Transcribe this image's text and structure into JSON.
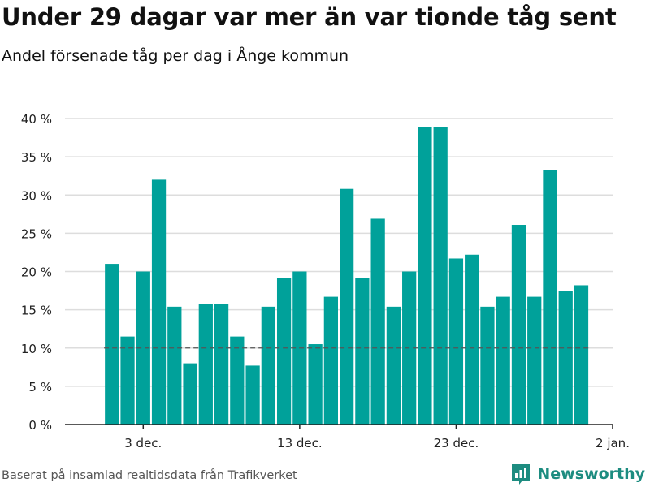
{
  "header": {
    "title": "Under 29 dagar var mer än var tionde tåg sent",
    "subtitle": "Andel försenade tåg per dag i Ånge kommun"
  },
  "footer": {
    "source": "Baserat på insamlad realtidsdata från Trafikverket",
    "brand": "Newsworthy",
    "brand_icon": "newsworthy-logo-icon"
  },
  "colors": {
    "bar": "#00a19a",
    "grid": "#dddddd",
    "reference_line": "#555555",
    "axis": "#222222",
    "text": "#222222",
    "brand": "#1d8c80"
  },
  "chart_data": {
    "type": "bar",
    "title": "Under 29 dagar var mer än var tionde tåg sent",
    "subtitle": "Andel försenade tåg per dag i Ånge kommun",
    "x": [
      "2021-12-01",
      "2021-12-02",
      "2021-12-03",
      "2021-12-04",
      "2021-12-05",
      "2021-12-06",
      "2021-12-07",
      "2021-12-08",
      "2021-12-09",
      "2021-12-10",
      "2021-12-11",
      "2021-12-12",
      "2021-12-13",
      "2021-12-14",
      "2021-12-15",
      "2021-12-16",
      "2021-12-17",
      "2021-12-18",
      "2021-12-19",
      "2021-12-20",
      "2021-12-21",
      "2021-12-22",
      "2021-12-23",
      "2021-12-24",
      "2021-12-25",
      "2021-12-26",
      "2021-12-27",
      "2021-12-28",
      "2021-12-29",
      "2021-12-30",
      "2021-12-31"
    ],
    "values": [
      21.0,
      11.5,
      20.0,
      32.0,
      15.4,
      8.0,
      15.8,
      15.8,
      11.5,
      7.7,
      15.4,
      19.2,
      20.0,
      10.5,
      16.7,
      30.8,
      19.2,
      26.9,
      15.4,
      20.0,
      38.9,
      38.9,
      21.7,
      22.2,
      15.4,
      16.7,
      26.1,
      16.7,
      33.3,
      17.4,
      18.2
    ],
    "ylim": [
      0,
      40
    ],
    "yticks": [
      0,
      5,
      10,
      15,
      20,
      25,
      30,
      35,
      40
    ],
    "ytick_labels": [
      "0 %",
      "5 %",
      "10 %",
      "15 %",
      "20 %",
      "25 %",
      "30 %",
      "35 %",
      "40 %"
    ],
    "xlim": [
      "2021-11-28",
      "2022-01-02"
    ],
    "xticks": [
      "2021-12-03",
      "2021-12-13",
      "2021-12-23",
      "2022-01-02"
    ],
    "xtick_labels": [
      "3 dec.",
      "13 dec.",
      "23 dec.",
      "2 jan."
    ],
    "reference_line": 10,
    "xlabel": "",
    "ylabel": "",
    "grid": true,
    "legend": false
  }
}
